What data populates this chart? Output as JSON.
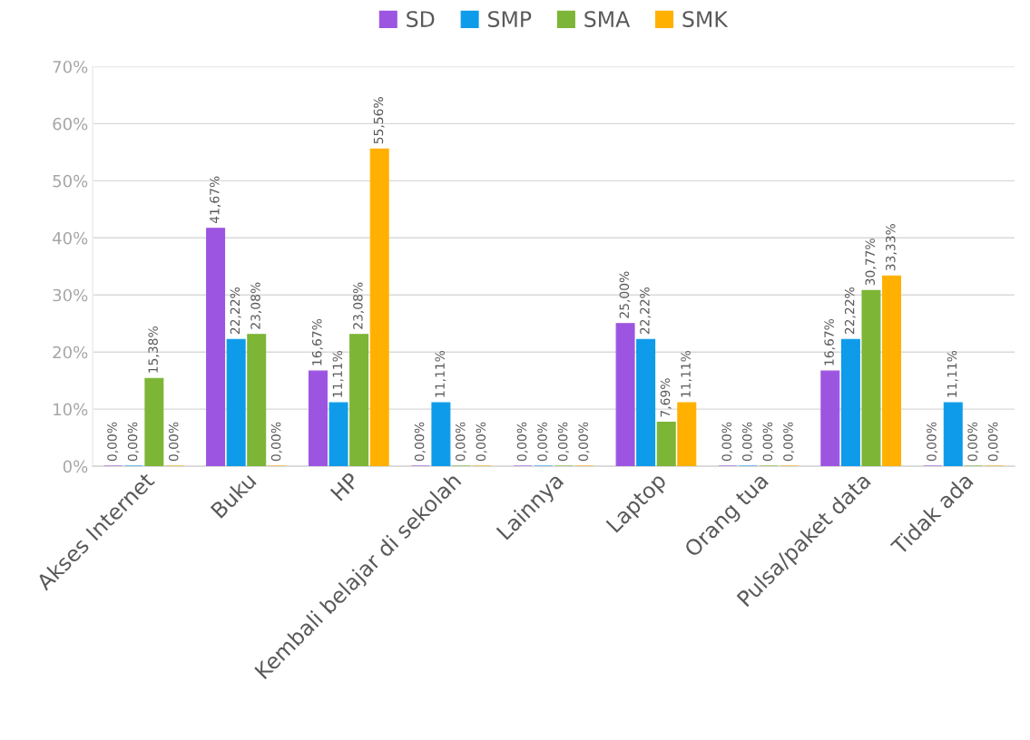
{
  "chart_data": {
    "type": "bar",
    "categories": [
      "Akses Internet",
      "Buku",
      "HP",
      "Kembali belajar di sekolah",
      "Lainnya",
      "Laptop",
      "Orang tua",
      "Pulsa/paket data",
      "Tidak ada"
    ],
    "series": [
      {
        "name": "SD",
        "color": "#9c55e0",
        "values": [
          0,
          41.67,
          16.67,
          0,
          0,
          25.0,
          0,
          16.67,
          0
        ],
        "value_labels": [
          "0,00%",
          "41,67%",
          "16,67%",
          "0,00%",
          "0,00%",
          "25,00%",
          "0,00%",
          "16,67%",
          "0,00%"
        ]
      },
      {
        "name": "SMP",
        "color": "#0d9bea",
        "values": [
          0,
          22.22,
          11.11,
          11.11,
          0,
          22.22,
          0,
          22.22,
          11.11
        ],
        "value_labels": [
          "0,00%",
          "22,22%",
          "11,11%",
          "11,11%",
          "0,00%",
          "22,22%",
          "0,00%",
          "22,22%",
          "11,11%"
        ]
      },
      {
        "name": "SMA",
        "color": "#7db536",
        "values": [
          15.38,
          23.08,
          23.08,
          0,
          0,
          7.69,
          0,
          30.77,
          0
        ],
        "value_labels": [
          "15,38%",
          "23,08%",
          "23,08%",
          "0,00%",
          "0,00%",
          "7,69%",
          "0,00%",
          "30,77%",
          "0,00%"
        ]
      },
      {
        "name": "SMK",
        "color": "#ffb000",
        "values": [
          0,
          0,
          55.56,
          0,
          0,
          11.11,
          0,
          33.33,
          0
        ],
        "value_labels": [
          "0,00%",
          "0,00%",
          "55,56%",
          "0,00%",
          "0,00%",
          "11,11%",
          "0,00%",
          "33,33%",
          "0,00%"
        ]
      }
    ],
    "ylim": [
      0,
      70
    ],
    "yticks": [
      {
        "value": 0,
        "label": "0%"
      },
      {
        "value": 10,
        "label": "10%"
      },
      {
        "value": 20,
        "label": "20%"
      },
      {
        "value": 30,
        "label": "30%"
      },
      {
        "value": 40,
        "label": "40%"
      },
      {
        "value": 50,
        "label": "50%"
      },
      {
        "value": 60,
        "label": "60%"
      },
      {
        "value": 70,
        "label": "70%"
      }
    ],
    "grid": "y",
    "legend": "top"
  }
}
